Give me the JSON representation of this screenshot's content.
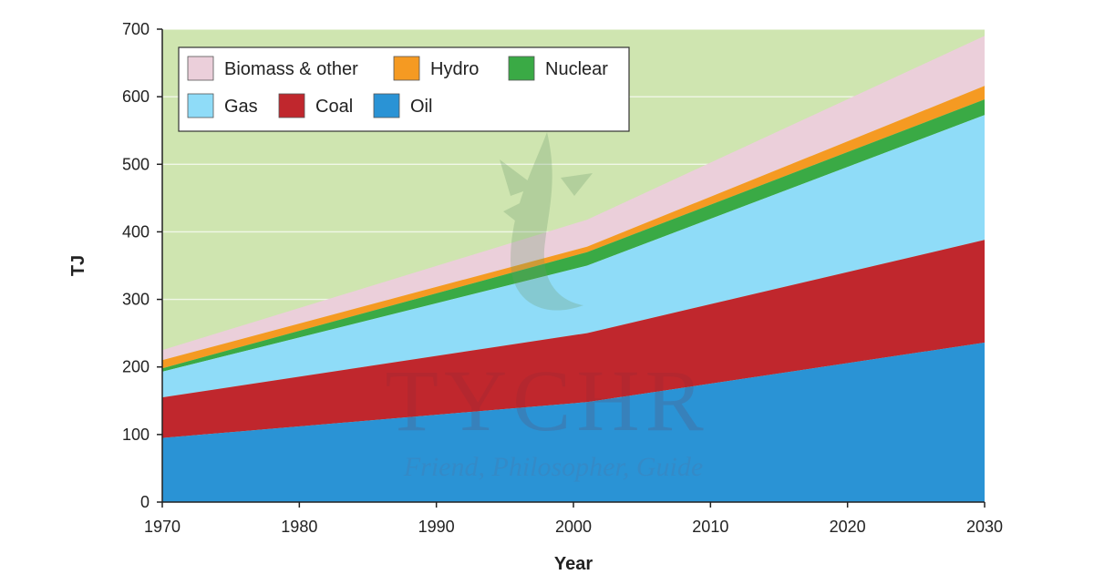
{
  "chart_data": {
    "type": "area",
    "stacked": true,
    "xlabel": "Year",
    "ylabel": "TJ",
    "xlim": [
      1970,
      2030
    ],
    "ylim": [
      0,
      700
    ],
    "x_ticks": [
      1970,
      1980,
      1990,
      2000,
      2010,
      2020,
      2030
    ],
    "y_ticks": [
      0,
      100,
      200,
      300,
      400,
      500,
      600,
      700
    ],
    "grid": true,
    "legend_position": "top-left",
    "background_color": "#cfe5b0",
    "x": [
      1970,
      2001,
      2030
    ],
    "series": [
      {
        "name": "Oil",
        "color": "#2a93d5",
        "values": [
          95,
          148,
          236
        ]
      },
      {
        "name": "Coal",
        "color": "#c0272d",
        "values": [
          60,
          102,
          152
        ]
      },
      {
        "name": "Gas",
        "color": "#8fdcf8",
        "values": [
          38,
          100,
          185
        ]
      },
      {
        "name": "Nuclear",
        "color": "#3aaa45",
        "values": [
          5,
          20,
          23
        ]
      },
      {
        "name": "Hydro",
        "color": "#f59a22",
        "values": [
          12,
          8,
          20
        ]
      },
      {
        "name": "Biomass & other",
        "color": "#ebcfda",
        "values": [
          15,
          40,
          74
        ]
      }
    ],
    "legend_order": [
      "Biomass & other",
      "Hydro",
      "Nuclear",
      "Gas",
      "Coal",
      "Oil"
    ]
  },
  "watermark": {
    "brand": "TYCHR",
    "tagline": "Friend, Philosopher, Guide"
  }
}
